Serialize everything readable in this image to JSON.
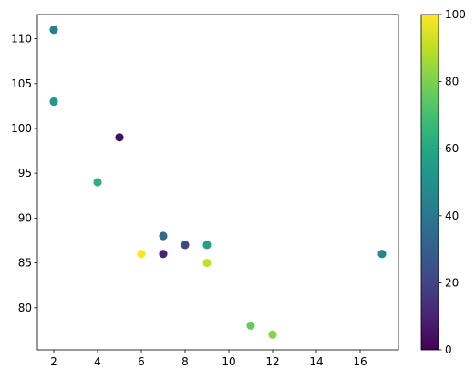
{
  "chart_data": {
    "type": "scatter",
    "title": "",
    "xlabel": "",
    "ylabel": "",
    "xlim": [
      1.25,
      17.75
    ],
    "ylim": [
      75.3,
      112.7
    ],
    "xticks": [
      2,
      4,
      6,
      8,
      10,
      12,
      14,
      16
    ],
    "yticks": [
      80,
      85,
      90,
      95,
      100,
      105,
      110
    ],
    "grid": false,
    "colormap": "viridis",
    "colorbar": {
      "range": [
        0,
        100
      ],
      "ticks": [
        0,
        20,
        40,
        60,
        80,
        100
      ]
    },
    "points": [
      {
        "x": 5,
        "y": 99,
        "c": 3
      },
      {
        "x": 7,
        "y": 86,
        "c": 10
      },
      {
        "x": 8,
        "y": 87,
        "c": 22
      },
      {
        "x": 7,
        "y": 88,
        "c": 35
      },
      {
        "x": 2,
        "y": 111,
        "c": 42
      },
      {
        "x": 17,
        "y": 86,
        "c": 45
      },
      {
        "x": 2,
        "y": 103,
        "c": 53
      },
      {
        "x": 9,
        "y": 87,
        "c": 57
      },
      {
        "x": 4,
        "y": 94,
        "c": 64
      },
      {
        "x": 11,
        "y": 78,
        "c": 76
      },
      {
        "x": 12,
        "y": 77,
        "c": 82
      },
      {
        "x": 9,
        "y": 85,
        "c": 91
      },
      {
        "x": 6,
        "y": 86,
        "c": 99
      }
    ]
  }
}
